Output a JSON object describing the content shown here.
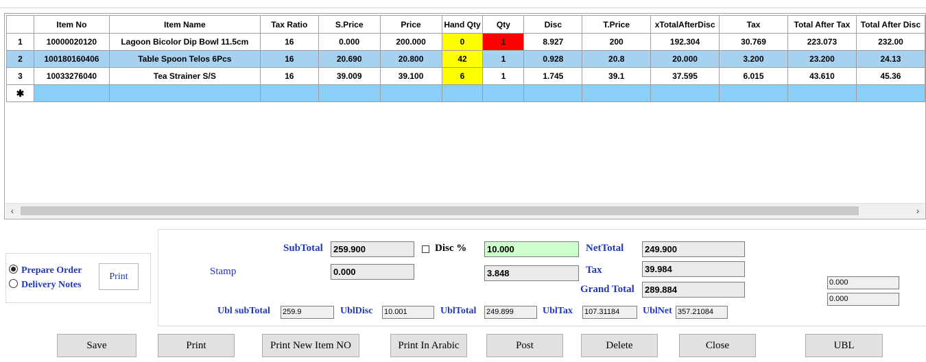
{
  "grid": {
    "columns": [
      "",
      "Item No",
      "Item Name",
      "Tax Ratio",
      "S.Price",
      "Price",
      "Hand Qty",
      "Qty",
      "Disc",
      "T.Price",
      "xTotalAfterDisc",
      "Tax",
      "Total After Tax",
      "Total After Disc"
    ],
    "rows": [
      {
        "num": "1",
        "item_no": "10000020120",
        "item_name": "Lagoon Bicolor Dip Bowl 11.5cm",
        "tax_ratio": "16",
        "s_price": "0.000",
        "price": "200.000",
        "hand_qty": "0",
        "qty": "1",
        "disc": "8.927",
        "t_price": "200",
        "x_total_after_disc": "192.304",
        "tax": "30.769",
        "total_after_tax": "223.073",
        "total_after_disc": "232.00"
      },
      {
        "num": "2",
        "item_no": "100180160406",
        "item_name": "Table Spoon Telos 6Pcs",
        "tax_ratio": "16",
        "s_price": "20.690",
        "price": "20.800",
        "hand_qty": "42",
        "qty": "1",
        "disc": "0.928",
        "t_price": "20.8",
        "x_total_after_disc": "20.000",
        "tax": "3.200",
        "total_after_tax": "23.200",
        "total_after_disc": "24.13"
      },
      {
        "num": "3",
        "item_no": "10033276040",
        "item_name": "Tea Strainer S/S",
        "tax_ratio": "16",
        "s_price": "39.009",
        "price": "39.100",
        "hand_qty": "6",
        "qty": "1",
        "disc": "1.745",
        "t_price": "39.1",
        "x_total_after_disc": "37.595",
        "tax": "6.015",
        "total_after_tax": "43.610",
        "total_after_disc": "45.36"
      }
    ],
    "new_row_marker": "✱",
    "scroll_left": "‹",
    "scroll_right": "›"
  },
  "mode": {
    "prepare_order": "Prepare Order",
    "delivery_notes": "Delivery Notes",
    "selected": "prepare_order",
    "print_label": "Print"
  },
  "totals": {
    "subtotal_label": "SubTotal",
    "subtotal": "259.900",
    "disc_label": "Disc %",
    "disc_percent": "10.000",
    "disc_amount": "3.848",
    "nettotal_label": "NetTotal",
    "nettotal": "249.900",
    "stamp_label": "Stamp",
    "stamp": "0.000",
    "tax_label": "Tax",
    "tax": "39.984",
    "grand_total_label": "Grand Total",
    "grand_total": "289.884",
    "extra_1": "0.000",
    "extra_2": "0.000"
  },
  "ubl": {
    "subtotal_label": "Ubl subTotal",
    "subtotal": "259.9",
    "disc_label": "UblDisc",
    "disc": "10.001",
    "total_label": "UblTotal",
    "total": "249.899",
    "tax_label": "UblTax",
    "tax": "107.31184",
    "net_label": "UblNet",
    "net": "357.21084"
  },
  "buttons": {
    "save": "Save",
    "print": "Print",
    "print_new_item_no": "Print New Item NO",
    "print_in_arabic": "Print In Arabic",
    "post": "Post",
    "delete": "Delete",
    "close": "Close",
    "ubl": "UBL"
  },
  "colors": {
    "label_blue": "#1f37b8",
    "selected_row": "#a6d2f0",
    "new_row": "#89cff8",
    "hand_qty": "#ffff00",
    "qty_alert": "#ff0000",
    "disc_field": "#ccffcc"
  }
}
